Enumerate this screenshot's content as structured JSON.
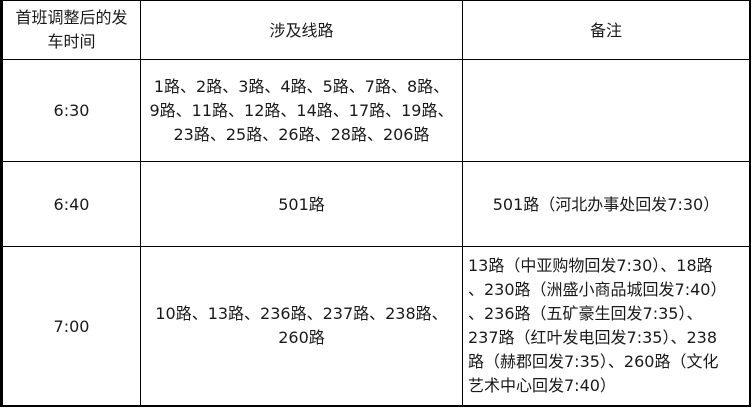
{
  "header": {
    "time_col_lines": [
      "首班调整后的发",
      "车时间"
    ],
    "routes_col": "涉及线路",
    "notes_col": "备注"
  },
  "rows": [
    {
      "time": "6:30",
      "routes_lines": [
        "1路、2路、3路、4路、5路、7路、8路、",
        "9路、11路、12路、14路、17路、19路、",
        "23路、25路、26路、28路、206路"
      ],
      "notes_lines": []
    },
    {
      "time": "6:40",
      "routes_lines": [
        "501路"
      ],
      "notes_lines": [
        "501路（河北办事处回发7:30）"
      ]
    },
    {
      "time": "7:00",
      "routes_lines": [
        "10路、13路、236路、237路、238路、",
        "260路"
      ],
      "notes_lines": [
        "13路（中亚购物回发7:30）、18路",
        "、230路（洲盛小商品城回发7:40）",
        "、236路（五矿豪生回发7:35）、",
        "237路（红叶发电回发7:35）、238",
        "路（赫郡回发7:35）、260路（文化",
        "艺术中心回发7:40）"
      ]
    }
  ]
}
